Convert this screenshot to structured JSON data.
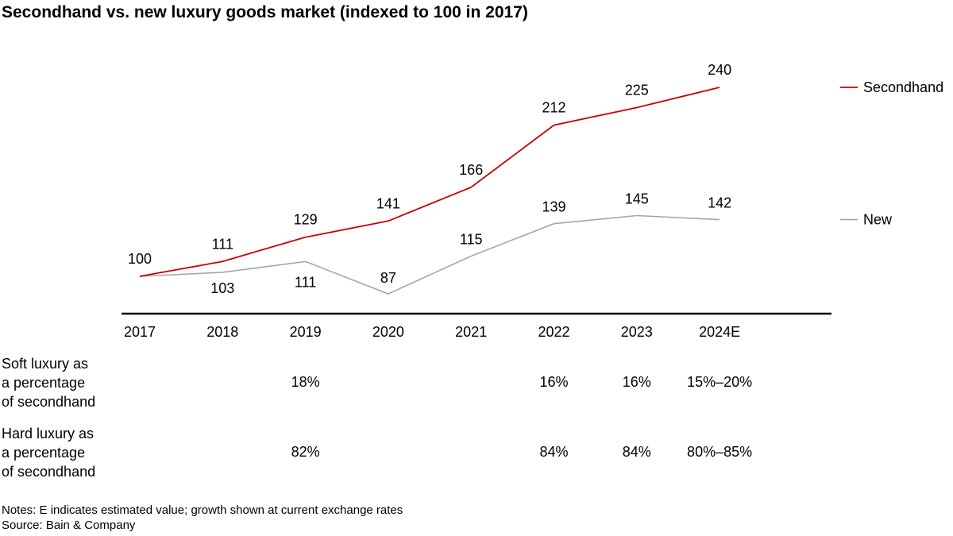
{
  "title": "Secondhand vs. new luxury goods market (indexed to 100 in 2017)",
  "chart_data": {
    "type": "line",
    "title": "Secondhand vs. new luxury goods market (indexed to 100 in 2017)",
    "categories": [
      "2017",
      "2018",
      "2019",
      "2020",
      "2021",
      "2022",
      "2023",
      "2024E"
    ],
    "series": [
      {
        "name": "Secondhand",
        "color": "#cc0000",
        "values": [
          100,
          111,
          129,
          141,
          166,
          212,
          225,
          240
        ],
        "labels": [
          "100",
          "111",
          "129",
          "141",
          "166",
          "212",
          "225",
          "240"
        ]
      },
      {
        "name": "New",
        "color": "#a6a6a6",
        "values": [
          100,
          103,
          111,
          87,
          115,
          139,
          145,
          142
        ],
        "labels": [
          "",
          "103",
          "111",
          "87",
          "115",
          "139",
          "145",
          "142"
        ]
      }
    ],
    "legend": "right, at end of each line",
    "grid": false
  },
  "table": {
    "rows": [
      {
        "label": [
          "Soft luxury as",
          "a percentage",
          "of secondhand"
        ],
        "values": [
          "",
          "",
          "18%",
          "",
          "",
          "16%",
          "16%",
          "15%–20%"
        ]
      },
      {
        "label": [
          "Hard luxury as",
          "a percentage",
          "of secondhand"
        ],
        "values": [
          "",
          "",
          "82%",
          "",
          "",
          "84%",
          "84%",
          "80%–85%"
        ]
      }
    ]
  },
  "notes": "Notes: E indicates estimated value; growth shown at current exchange rates",
  "source": "Source: Bain & Company"
}
